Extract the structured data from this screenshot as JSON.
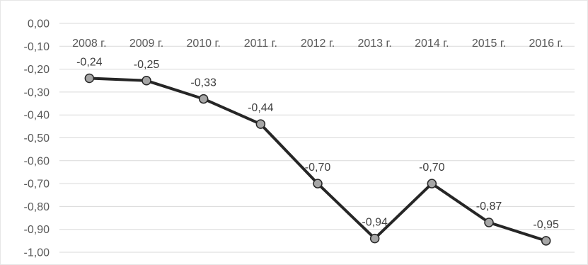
{
  "chart_data": {
    "type": "line",
    "title": "",
    "xlabel": "",
    "ylabel": "",
    "categories": [
      "2008 г.",
      "2009 г.",
      "2010 г.",
      "2011 г.",
      "2012 г.",
      "2013 г.",
      "2014 г.",
      "2015 г.",
      "2016 г."
    ],
    "series": [
      {
        "values": [
          -0.24,
          -0.25,
          -0.33,
          -0.44,
          -0.7,
          -0.94,
          -0.7,
          -0.87,
          -0.95
        ],
        "labels": [
          "-0,24",
          "-0,25",
          "-0,33",
          "-0,44",
          "-0,70",
          "-0,94",
          "-0,70",
          "-0,87",
          "-0,95"
        ],
        "color": "#262626",
        "marker_color": "#a6a6a6"
      }
    ],
    "ylim": [
      -1.0,
      0.0
    ],
    "y_ticks": [
      0.0,
      -0.1,
      -0.2,
      -0.3,
      -0.4,
      -0.5,
      -0.6,
      -0.7,
      -0.8,
      -0.9,
      -1.0
    ],
    "y_tick_labels": [
      "0,00",
      "-0,10",
      "-0,20",
      "-0,30",
      "-0,40",
      "-0,50",
      "-0,60",
      "-0,70",
      "-0,80",
      "-0,90",
      "-1,00"
    ],
    "x_axis_position": "top",
    "grid": true,
    "legend": "none"
  }
}
